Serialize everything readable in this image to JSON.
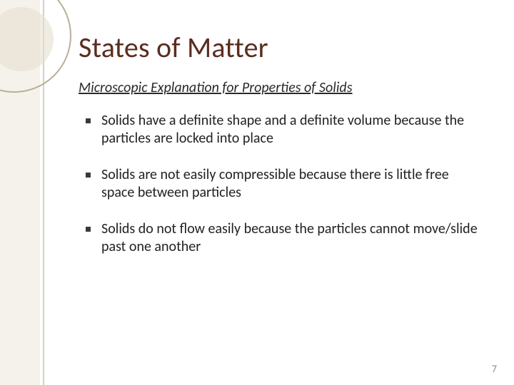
{
  "decoration": {
    "side_band_color": "#ebe7da",
    "side_line_color": "#8a7a5a",
    "circle_outer_border": "#b9b098",
    "circle_inner_fill": "#e6e0ce"
  },
  "title": {
    "text": "States of Matter",
    "color": "#5b2d1f",
    "fontsize": 40
  },
  "subtitle": {
    "text": "Microscopic Explanation for Properties of Solids",
    "fontsize": 20
  },
  "bullets": [
    "Solids have a definite shape and a definite volume because the particles are locked into place",
    "Solids are not easily compressible because there is little free space between particles",
    "Solids do not flow easily because the particles cannot move/slide past one another"
  ],
  "bullet_style": {
    "marker_color": "#3a3a3a",
    "fontsize": 20,
    "text_color": "#222222"
  },
  "page_number": "7",
  "background_color": "#ffffff"
}
